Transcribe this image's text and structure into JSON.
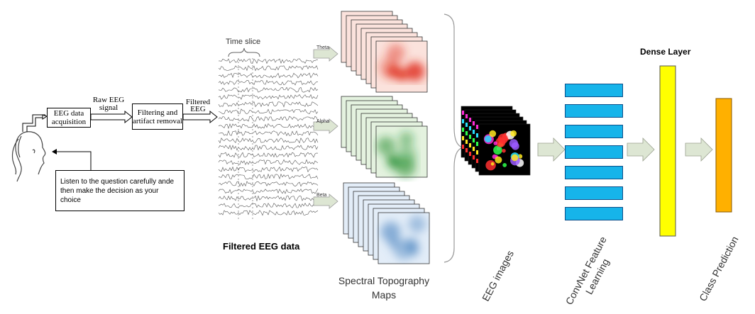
{
  "acquisition": {
    "box1": "EEG data acquisition",
    "arrow1": "Raw EEG signal",
    "box2": "Filtering and artifact removal",
    "arrow2": "Filtered EEG",
    "instruction": "Listen to the question carefully ande then make the decision as your choice"
  },
  "eeg": {
    "time_slice": "Time slice",
    "caption": "Filtered EEG data"
  },
  "bands": [
    {
      "name": "Theta",
      "color": "#e03020"
    },
    {
      "name": "Alpha",
      "color": "#1e8a2a"
    },
    {
      "name": "Beta",
      "color": "#5b8fc6"
    }
  ],
  "labels": {
    "topo": "Spectral Topography Maps",
    "eeg_images": "EEG images",
    "convnet": "ConvNet Feature Learning",
    "dense_title": "Dense Layer",
    "class_pred": "Class Prediction"
  },
  "colors": {
    "conv": "#16b4ea",
    "dense": "#ffff00",
    "class": "#ffb000",
    "arrow_fill": "#dde6d3"
  }
}
